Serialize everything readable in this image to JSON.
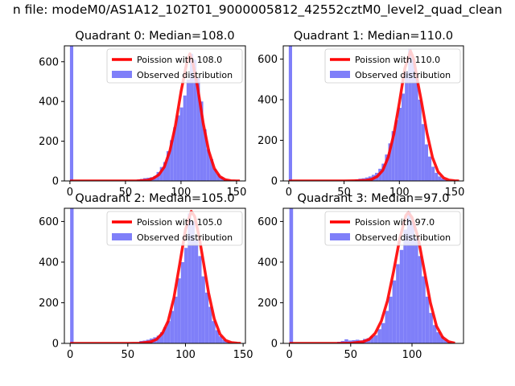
{
  "figure": {
    "suptitle": "n file: modeM0/AS1A12_102T01_9000005812_42552cztM0_level2_quad_clean"
  },
  "colors": {
    "poisson": "#ff0000",
    "observed": "#7f7ff9",
    "axis": "#000000"
  },
  "chart_data": [
    {
      "type": "bar",
      "title": "Quadrant 0: Median=108.0",
      "xlim": [
        -5,
        158
      ],
      "ylim": [
        0,
        680
      ],
      "xticks": [
        0,
        50,
        100,
        150
      ],
      "yticks": [
        0,
        200,
        400,
        600
      ],
      "legend_position": "upper right",
      "series": [
        {
          "name": "Poission with 108.0",
          "type": "line",
          "mean": 108.0,
          "x": [
            0,
            50,
            60,
            70,
            75,
            80,
            85,
            90,
            95,
            100,
            105,
            108,
            111,
            115,
            120,
            125,
            130,
            135,
            140,
            145,
            150,
            153
          ],
          "y": [
            0,
            0,
            0,
            4,
            13,
            31,
            71,
            152,
            280,
            449,
            590,
            640,
            585,
            470,
            290,
            150,
            63,
            22,
            6,
            1,
            0,
            0
          ]
        },
        {
          "name": "Observed distribution",
          "type": "histogram",
          "bin_width": 3,
          "bins": [
            [
              0,
              680
            ],
            [
              60,
              7
            ],
            [
              63,
              10
            ],
            [
              66,
              14
            ],
            [
              69,
              16
            ],
            [
              72,
              19
            ],
            [
              75,
              25
            ],
            [
              78,
              45
            ],
            [
              81,
              70
            ],
            [
              84,
              95
            ],
            [
              87,
              150
            ],
            [
              90,
              205
            ],
            [
              93,
              270
            ],
            [
              96,
              330
            ],
            [
              99,
              370
            ],
            [
              102,
              430
            ],
            [
              105,
              510
            ],
            [
              108,
              640
            ],
            [
              111,
              610
            ],
            [
              114,
              520
            ],
            [
              117,
              400
            ],
            [
              120,
              260
            ],
            [
              123,
              160
            ],
            [
              126,
              110
            ],
            [
              129,
              60
            ],
            [
              132,
              35
            ],
            [
              135,
              20
            ],
            [
              138,
              10
            ],
            [
              141,
              5
            ]
          ]
        }
      ]
    },
    {
      "type": "bar",
      "title": "Quadrant 1: Median=110.0",
      "xlim": [
        -5,
        158
      ],
      "ylim": [
        0,
        665
      ],
      "xticks": [
        0,
        50,
        100,
        150
      ],
      "yticks": [
        0,
        200,
        400,
        600
      ],
      "legend_position": "upper right",
      "series": [
        {
          "name": "Poission with 110.0",
          "type": "line",
          "mean": 110.0,
          "x": [
            0,
            50,
            60,
            70,
            75,
            80,
            85,
            90,
            95,
            100,
            105,
            110,
            113,
            117,
            120,
            125,
            130,
            135,
            140,
            145,
            150,
            154
          ],
          "y": [
            0,
            0,
            1,
            3,
            8,
            22,
            52,
            118,
            230,
            385,
            555,
            640,
            600,
            475,
            390,
            235,
            115,
            45,
            15,
            4,
            1,
            0
          ]
        },
        {
          "name": "Observed distribution",
          "type": "histogram",
          "bin_width": 3,
          "bins": [
            [
              0,
              665
            ],
            [
              60,
              8
            ],
            [
              63,
              11
            ],
            [
              66,
              13
            ],
            [
              69,
              17
            ],
            [
              72,
              22
            ],
            [
              75,
              30
            ],
            [
              78,
              40
            ],
            [
              81,
              60
            ],
            [
              84,
              85
            ],
            [
              87,
              130
            ],
            [
              90,
              185
            ],
            [
              93,
              245
            ],
            [
              96,
              300
            ],
            [
              99,
              360
            ],
            [
              102,
              430
            ],
            [
              105,
              540
            ],
            [
              108,
              650
            ],
            [
              111,
              600
            ],
            [
              114,
              510
            ],
            [
              117,
              400
            ],
            [
              120,
              280
            ],
            [
              123,
              180
            ],
            [
              126,
              120
            ],
            [
              129,
              70
            ],
            [
              132,
              40
            ],
            [
              135,
              22
            ],
            [
              138,
              12
            ],
            [
              141,
              5
            ]
          ]
        }
      ]
    },
    {
      "type": "bar",
      "title": "Quadrant 2: Median=105.0",
      "xlim": [
        -5,
        152
      ],
      "ylim": [
        0,
        665
      ],
      "xticks": [
        0,
        50,
        100,
        150
      ],
      "yticks": [
        0,
        200,
        400,
        600
      ],
      "legend_position": "upper right",
      "series": [
        {
          "name": "Poission with 105.0",
          "type": "line",
          "mean": 105.0,
          "x": [
            0,
            50,
            60,
            70,
            75,
            80,
            85,
            90,
            95,
            100,
            105,
            108,
            112,
            115,
            120,
            125,
            130,
            135,
            140,
            145,
            148
          ],
          "y": [
            0,
            0,
            1,
            8,
            20,
            50,
            110,
            225,
            390,
            560,
            650,
            625,
            520,
            420,
            250,
            120,
            45,
            14,
            4,
            1,
            0
          ]
        },
        {
          "name": "Observed distribution",
          "type": "histogram",
          "bin_width": 3,
          "bins": [
            [
              0,
              665
            ],
            [
              60,
              12
            ],
            [
              63,
              14
            ],
            [
              66,
              18
            ],
            [
              69,
              24
            ],
            [
              72,
              30
            ],
            [
              75,
              38
            ],
            [
              78,
              55
            ],
            [
              81,
              80
            ],
            [
              84,
              110
            ],
            [
              87,
              160
            ],
            [
              90,
              230
            ],
            [
              93,
              320
            ],
            [
              96,
              400
            ],
            [
              99,
              470
            ],
            [
              102,
              640
            ],
            [
              105,
              600
            ],
            [
              108,
              510
            ],
            [
              111,
              430
            ],
            [
              114,
              330
            ],
            [
              117,
              250
            ],
            [
              120,
              180
            ],
            [
              123,
              110
            ],
            [
              126,
              65
            ],
            [
              129,
              35
            ],
            [
              132,
              18
            ],
            [
              135,
              8
            ],
            [
              138,
              3
            ]
          ]
        }
      ]
    },
    {
      "type": "bar",
      "title": "Quadrant 3: Median=97.0",
      "xlim": [
        -5,
        142
      ],
      "ylim": [
        0,
        665
      ],
      "xticks": [
        0,
        50,
        100
      ],
      "yticks": [
        0,
        200,
        400,
        600
      ],
      "legend_position": "upper right",
      "series": [
        {
          "name": "Poission with 97.0",
          "type": "line",
          "mean": 97.0,
          "x": [
            0,
            40,
            50,
            60,
            65,
            70,
            75,
            80,
            85,
            90,
            95,
            97,
            100,
            105,
            110,
            115,
            120,
            125,
            130,
            135
          ],
          "y": [
            0,
            0,
            1,
            8,
            20,
            50,
            110,
            210,
            355,
            515,
            630,
            645,
            620,
            520,
            360,
            200,
            85,
            30,
            8,
            1
          ]
        },
        {
          "name": "Observed distribution",
          "type": "histogram",
          "bin_width": 3,
          "bins": [
            [
              0,
              665
            ],
            [
              39,
              8
            ],
            [
              42,
              12
            ],
            [
              45,
              20
            ],
            [
              48,
              14
            ],
            [
              51,
              16
            ],
            [
              54,
              18
            ],
            [
              57,
              15
            ],
            [
              60,
              22
            ],
            [
              63,
              26
            ],
            [
              66,
              35
            ],
            [
              69,
              40
            ],
            [
              72,
              70
            ],
            [
              75,
              100
            ],
            [
              78,
              160
            ],
            [
              81,
              230
            ],
            [
              84,
              310
            ],
            [
              87,
              390
            ],
            [
              90,
              460
            ],
            [
              93,
              560
            ],
            [
              96,
              650
            ],
            [
              99,
              600
            ],
            [
              102,
              520
            ],
            [
              105,
              430
            ],
            [
              108,
              330
            ],
            [
              111,
              230
            ],
            [
              114,
              150
            ],
            [
              117,
              90
            ],
            [
              120,
              55
            ],
            [
              123,
              35
            ],
            [
              126,
              18
            ],
            [
              129,
              8
            ]
          ]
        }
      ]
    }
  ]
}
